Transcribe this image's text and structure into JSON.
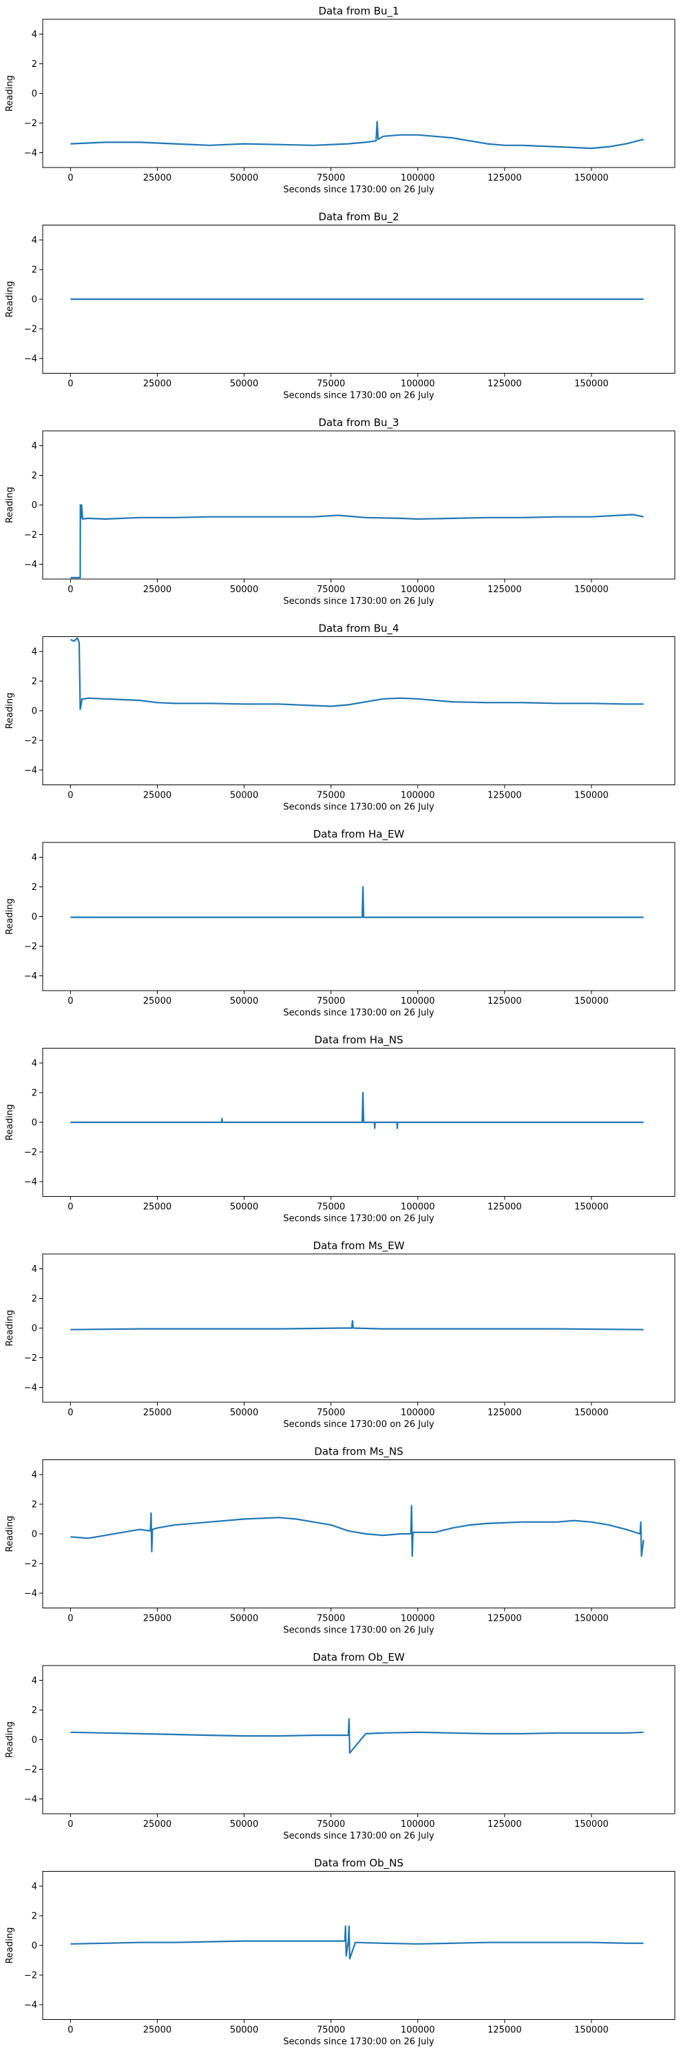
{
  "figure": {
    "line_color": "#1f77b4",
    "background": "#ffffff"
  },
  "chart_data": [
    {
      "type": "line",
      "title": "Data from Bu_1",
      "xlabel": "Seconds since 1730:00 on 26 July",
      "ylabel": "Reading",
      "xlim": [
        -8000,
        174000
      ],
      "ylim": [
        -5,
        5
      ],
      "xticks": [
        0,
        25000,
        50000,
        75000,
        100000,
        125000,
        150000
      ],
      "yticks": [
        -4,
        -2,
        0,
        2,
        4
      ],
      "grid": false,
      "series": [
        {
          "x": [
            0,
            10000,
            20000,
            25000,
            30000,
            40000,
            50000,
            60000,
            70000,
            80000,
            85000,
            88000,
            88300,
            88600,
            90000,
            95000,
            100000,
            105000,
            110000,
            115000,
            120000,
            125000,
            130000,
            140000,
            150000,
            155000,
            160000,
            165000
          ],
          "y": [
            -3.4,
            -3.3,
            -3.3,
            -3.35,
            -3.4,
            -3.5,
            -3.4,
            -3.45,
            -3.5,
            -3.4,
            -3.3,
            -3.2,
            -1.9,
            -3.1,
            -2.9,
            -2.8,
            -2.8,
            -2.9,
            -3.0,
            -3.2,
            -3.4,
            -3.5,
            -3.5,
            -3.6,
            -3.7,
            -3.6,
            -3.4,
            -3.1
          ]
        }
      ]
    },
    {
      "type": "line",
      "title": "Data from Bu_2",
      "xlabel": "Seconds since 1730:00 on 26 July",
      "ylabel": "Reading",
      "xlim": [
        -8000,
        174000
      ],
      "ylim": [
        -5,
        5
      ],
      "xticks": [
        0,
        25000,
        50000,
        75000,
        100000,
        125000,
        150000
      ],
      "yticks": [
        -4,
        -2,
        0,
        2,
        4
      ],
      "grid": false,
      "series": [
        {
          "x": [
            0,
            165000
          ],
          "y": [
            0,
            0
          ]
        }
      ]
    },
    {
      "type": "line",
      "title": "Data from Bu_3",
      "xlabel": "Seconds since 1730:00 on 26 July",
      "ylabel": "Reading",
      "xlim": [
        -8000,
        174000
      ],
      "ylim": [
        -5,
        5
      ],
      "xticks": [
        0,
        25000,
        50000,
        75000,
        100000,
        125000,
        150000
      ],
      "yticks": [
        -4,
        -2,
        0,
        2,
        4
      ],
      "grid": false,
      "series": [
        {
          "x": [
            0,
            2800,
            2850,
            3000,
            3200,
            3500,
            5000,
            10000,
            20000,
            30000,
            40000,
            50000,
            60000,
            70000,
            77000,
            85000,
            95000,
            100000,
            110000,
            120000,
            130000,
            140000,
            150000,
            158000,
            162000,
            165000
          ],
          "y": [
            -4.9,
            -4.9,
            0.0,
            -0.9,
            0.0,
            -0.95,
            -0.9,
            -0.95,
            -0.85,
            -0.85,
            -0.8,
            -0.8,
            -0.8,
            -0.8,
            -0.7,
            -0.85,
            -0.9,
            -0.95,
            -0.9,
            -0.85,
            -0.85,
            -0.8,
            -0.8,
            -0.7,
            -0.65,
            -0.8
          ]
        }
      ]
    },
    {
      "type": "line",
      "title": "Data from Bu_4",
      "xlabel": "Seconds since 1730:00 on 26 July",
      "ylabel": "Reading",
      "xlim": [
        -8000,
        174000
      ],
      "ylim": [
        -5,
        5
      ],
      "xticks": [
        0,
        25000,
        50000,
        75000,
        100000,
        125000,
        150000
      ],
      "yticks": [
        -4,
        -2,
        0,
        2,
        4
      ],
      "grid": false,
      "series": [
        {
          "x": [
            0,
            1000,
            2000,
            2500,
            2800,
            3000,
            3300,
            4000,
            5000,
            10000,
            15000,
            20000,
            25000,
            30000,
            40000,
            50000,
            60000,
            70000,
            75000,
            80000,
            85000,
            90000,
            95000,
            100000,
            105000,
            110000,
            120000,
            130000,
            140000,
            150000,
            160000,
            165000
          ],
          "y": [
            4.8,
            4.7,
            4.9,
            4.6,
            0.1,
            0.3,
            0.8,
            0.8,
            0.85,
            0.8,
            0.75,
            0.7,
            0.55,
            0.5,
            0.5,
            0.45,
            0.45,
            0.35,
            0.3,
            0.4,
            0.6,
            0.8,
            0.85,
            0.8,
            0.7,
            0.6,
            0.55,
            0.55,
            0.5,
            0.5,
            0.45,
            0.45
          ]
        }
      ]
    },
    {
      "type": "line",
      "title": "Data from Ha_EW",
      "xlabel": "Seconds since 1730:00 on 26 July",
      "ylabel": "Reading",
      "xlim": [
        -8000,
        174000
      ],
      "ylim": [
        -5,
        5
      ],
      "xticks": [
        0,
        25000,
        50000,
        75000,
        100000,
        125000,
        150000
      ],
      "yticks": [
        -4,
        -2,
        0,
        2,
        4
      ],
      "grid": false,
      "series": [
        {
          "x": [
            0,
            20000,
            40000,
            60000,
            80000,
            84000,
            84200,
            84400,
            90000,
            100000,
            120000,
            140000,
            165000
          ],
          "y": [
            -0.05,
            -0.05,
            -0.05,
            -0.05,
            -0.05,
            -0.05,
            2.0,
            -0.05,
            -0.05,
            -0.05,
            -0.05,
            -0.05,
            -0.05
          ]
        }
      ]
    },
    {
      "type": "line",
      "title": "Data from Ha_NS",
      "xlabel": "Seconds since 1730:00 on 26 July",
      "ylabel": "Reading",
      "xlim": [
        -8000,
        174000
      ],
      "ylim": [
        -5,
        5
      ],
      "xticks": [
        0,
        25000,
        50000,
        75000,
        100000,
        125000,
        150000
      ],
      "yticks": [
        -4,
        -2,
        0,
        2,
        4
      ],
      "grid": false,
      "series": [
        {
          "x": [
            0,
            20000,
            43500,
            43600,
            43700,
            60000,
            84000,
            84200,
            84400,
            87500,
            87600,
            87700,
            94000,
            94100,
            94200,
            110000,
            140000,
            165000
          ],
          "y": [
            0.0,
            0.0,
            0.0,
            0.25,
            0.0,
            0.0,
            0.0,
            2.0,
            0.0,
            0.0,
            -0.4,
            0.0,
            0.0,
            -0.4,
            0.0,
            0.0,
            0.0,
            0.0
          ]
        }
      ]
    },
    {
      "type": "line",
      "title": "Data from Ms_EW",
      "xlabel": "Seconds since 1730:00 on 26 July",
      "ylabel": "Reading",
      "xlim": [
        -8000,
        174000
      ],
      "ylim": [
        -5,
        5
      ],
      "xticks": [
        0,
        25000,
        50000,
        75000,
        100000,
        125000,
        150000
      ],
      "yticks": [
        -4,
        -2,
        0,
        2,
        4
      ],
      "grid": false,
      "series": [
        {
          "x": [
            0,
            20000,
            40000,
            60000,
            78000,
            81000,
            81200,
            81400,
            90000,
            110000,
            140000,
            165000
          ],
          "y": [
            -0.1,
            -0.05,
            -0.05,
            -0.05,
            0.0,
            0.0,
            0.5,
            0.0,
            -0.05,
            -0.05,
            -0.05,
            -0.1
          ]
        }
      ]
    },
    {
      "type": "line",
      "title": "Data from Ms_NS",
      "xlabel": "Seconds since 1730:00 on 26 July",
      "ylabel": "Reading",
      "xlim": [
        -8000,
        174000
      ],
      "ylim": [
        -5,
        5
      ],
      "xticks": [
        0,
        25000,
        50000,
        75000,
        100000,
        125000,
        150000
      ],
      "yticks": [
        -4,
        -2,
        0,
        2,
        4
      ],
      "grid": false,
      "series": [
        {
          "x": [
            0,
            5000,
            10000,
            15000,
            20000,
            23000,
            23200,
            23400,
            23600,
            25000,
            30000,
            40000,
            50000,
            60000,
            65000,
            70000,
            75000,
            80000,
            85000,
            90000,
            95000,
            98000,
            98200,
            98400,
            98600,
            100000,
            105000,
            110000,
            115000,
            120000,
            130000,
            140000,
            145000,
            150000,
            155000,
            160000,
            164000,
            164200,
            164400,
            165000
          ],
          "y": [
            -0.2,
            -0.3,
            -0.1,
            0.1,
            0.3,
            0.2,
            1.4,
            -1.2,
            0.3,
            0.4,
            0.6,
            0.8,
            1.0,
            1.1,
            1.0,
            0.8,
            0.6,
            0.2,
            0.0,
            -0.1,
            0.0,
            0.0,
            1.9,
            -1.5,
            0.1,
            0.1,
            0.1,
            0.4,
            0.6,
            0.7,
            0.8,
            0.8,
            0.9,
            0.8,
            0.6,
            0.3,
            0.0,
            0.8,
            -1.5,
            -0.4
          ]
        }
      ]
    },
    {
      "type": "line",
      "title": "Data from Ob_EW",
      "xlabel": "Seconds since 1730:00 on 26 July",
      "ylabel": "Reading",
      "xlim": [
        -8000,
        174000
      ],
      "ylim": [
        -5,
        5
      ],
      "xticks": [
        0,
        25000,
        50000,
        75000,
        100000,
        125000,
        150000
      ],
      "yticks": [
        -4,
        -2,
        0,
        2,
        4
      ],
      "grid": false,
      "series": [
        {
          "x": [
            0,
            10000,
            20000,
            30000,
            40000,
            50000,
            60000,
            70000,
            78000,
            80000,
            80200,
            80400,
            85000,
            90000,
            100000,
            110000,
            120000,
            130000,
            140000,
            150000,
            160000,
            165000
          ],
          "y": [
            0.5,
            0.45,
            0.4,
            0.35,
            0.3,
            0.25,
            0.25,
            0.3,
            0.3,
            0.3,
            1.4,
            -0.9,
            0.4,
            0.45,
            0.5,
            0.45,
            0.4,
            0.4,
            0.45,
            0.45,
            0.45,
            0.5
          ]
        }
      ]
    },
    {
      "type": "line",
      "title": "Data from Ob_NS",
      "xlabel": "Seconds since 1730:00 on 26 July",
      "ylabel": "Reading",
      "xlim": [
        -8000,
        174000
      ],
      "ylim": [
        -5,
        5
      ],
      "xticks": [
        0,
        25000,
        50000,
        75000,
        100000,
        125000,
        150000
      ],
      "yticks": [
        -4,
        -2,
        0,
        2,
        4
      ],
      "grid": false,
      "series": [
        {
          "x": [
            0,
            10000,
            20000,
            30000,
            40000,
            50000,
            60000,
            70000,
            78000,
            79000,
            79200,
            79400,
            80000,
            80200,
            80400,
            82000,
            90000,
            100000,
            110000,
            120000,
            130000,
            140000,
            150000,
            160000,
            165000
          ],
          "y": [
            0.1,
            0.15,
            0.2,
            0.2,
            0.25,
            0.3,
            0.3,
            0.3,
            0.3,
            0.3,
            1.3,
            -0.7,
            0.3,
            1.3,
            -0.9,
            0.2,
            0.15,
            0.1,
            0.15,
            0.2,
            0.2,
            0.2,
            0.2,
            0.15,
            0.15
          ]
        }
      ]
    }
  ]
}
